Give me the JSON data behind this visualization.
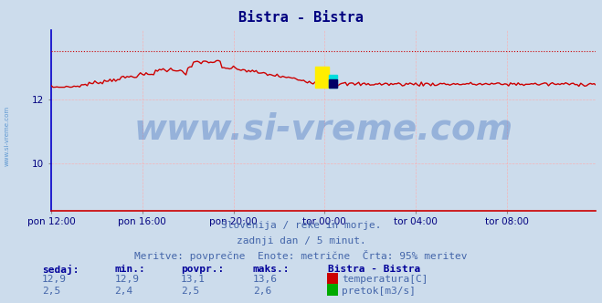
{
  "title": "Bistra - Bistra",
  "title_color": "#000080",
  "bg_color": "#ccdcec",
  "plot_bg_color": "#ccdcec",
  "grid_color": "#ffaaaa",
  "xlabel_ticks": [
    "pon 12:00",
    "pon 16:00",
    "pon 20:00",
    "tor 00:00",
    "tor 04:00",
    "tor 08:00"
  ],
  "yticks": [
    10,
    12
  ],
  "ylim_min": 8.5,
  "ylim_max": 14.2,
  "xlim_min": 0,
  "xlim_max": 287,
  "temp_color": "#cc0000",
  "flow_color": "#00aa00",
  "left_spine_color": "#0000cc",
  "bottom_spine_color": "#cc0000",
  "watermark": "www.si-vreme.com",
  "watermark_color": "#3366bb",
  "watermark_alpha": 0.35,
  "watermark_fontsize": 28,
  "subtitle1": "Slovenija / reke in morje.",
  "subtitle2": "zadnji dan / 5 minut.",
  "subtitle3": "Meritve: povprečne  Enote: metrične  Črta: 95% meritev",
  "subtitle_color": "#4466aa",
  "subtitle_fontsize": 8,
  "table_header_color": "#000099",
  "table_value_color": "#4466aa",
  "table_headers": [
    "sedaj:",
    "min.:",
    "povpr.:",
    "maks.:"
  ],
  "table_header_fontsize": 8,
  "table_value_fontsize": 8,
  "temp_values": [
    "12,9",
    "12,9",
    "13,1",
    "13,6"
  ],
  "flow_values": [
    "2,5",
    "2,4",
    "2,5",
    "2,6"
  ],
  "legend_title": "Bistra - Bistra",
  "legend_title_fontsize": 8,
  "legend_temp": "temperatura[C]",
  "legend_flow": "pretok[m3/s]",
  "temp_rect_color": "#cc0000",
  "flow_rect_color": "#00aa00",
  "sidebar_text": "www.si-vreme.com",
  "sidebar_color": "#4488cc",
  "tick_fontsize": 7.5,
  "tick_color": "#000080",
  "title_fontsize": 11
}
